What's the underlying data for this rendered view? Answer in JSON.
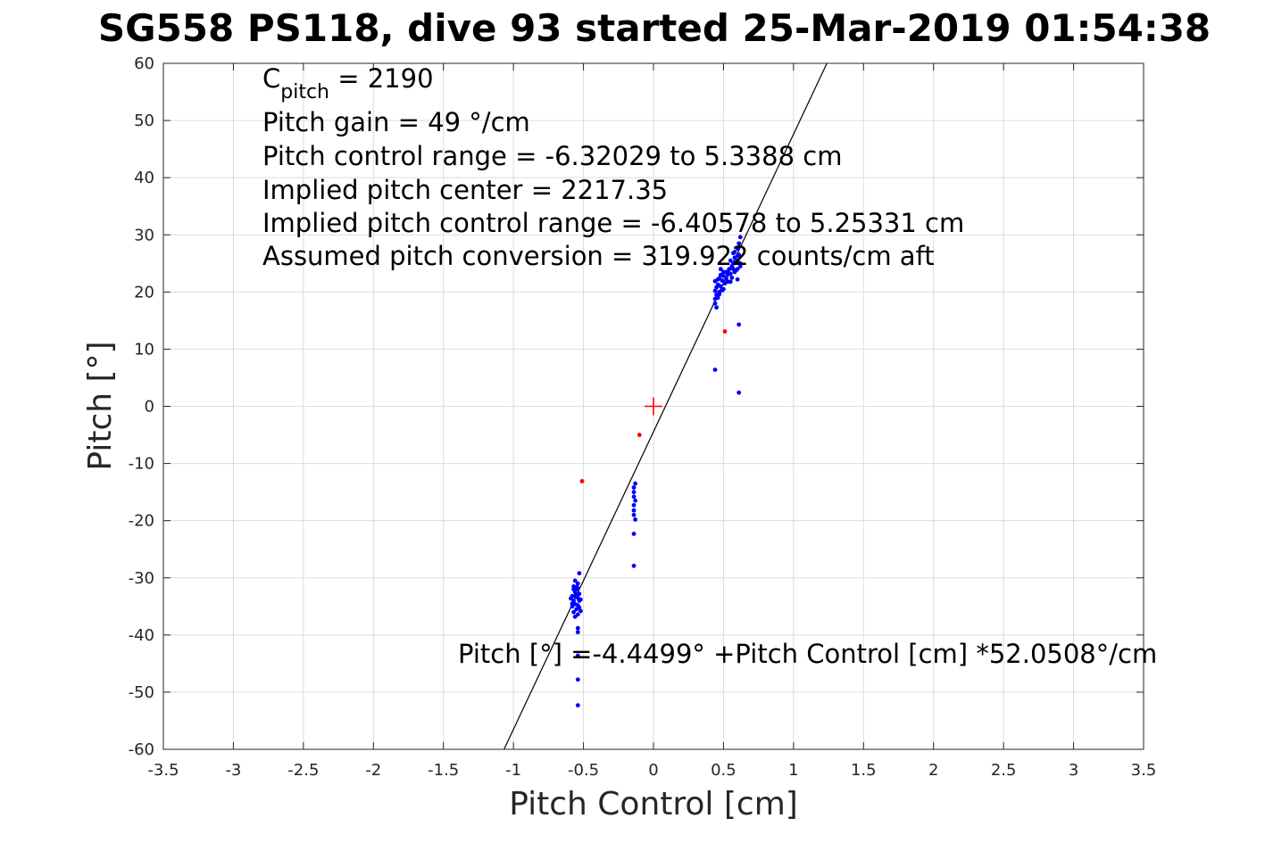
{
  "chart_data": {
    "type": "scatter",
    "title": "SG558 PS118, dive 93 started 25-Mar-2019 01:54:38",
    "xlabel": "Pitch Control [cm]",
    "ylabel": "Pitch [°]",
    "xlim": [
      -3.5,
      3.5
    ],
    "ylim": [
      -60,
      60
    ],
    "grid": true,
    "xticks": [
      -3.5,
      -3,
      -2.5,
      -2,
      -1.5,
      -1,
      -0.5,
      0,
      0.5,
      1,
      1.5,
      2,
      2.5,
      3,
      3.5
    ],
    "yticks": [
      -60,
      -50,
      -40,
      -30,
      -20,
      -10,
      0,
      10,
      20,
      30,
      40,
      50,
      60
    ],
    "xtick_labels": [
      "-3.5",
      "-3",
      "-2.5",
      "-2",
      "-1.5",
      "-1",
      "-0.5",
      "0",
      "0.5",
      "1",
      "1.5",
      "2",
      "2.5",
      "3",
      "3.5"
    ],
    "ytick_labels": [
      "-60",
      "-50",
      "-40",
      "-30",
      "-20",
      "-10",
      "0",
      "10",
      "20",
      "30",
      "40",
      "50",
      "60"
    ],
    "fit_line": {
      "intercept": -4.4499,
      "slope": 52.0508
    },
    "center_marker": {
      "x": 0,
      "y": 0,
      "color": "#ff0000"
    },
    "annotations": {
      "c_pitch_prefix": "C",
      "c_pitch_sub": "pitch",
      "c_pitch_value": " = 2190",
      "lines": [
        "Pitch gain = 49 °/cm",
        "Pitch control range = -6.32029 to 5.3388 cm",
        "Implied pitch center = 2217.35",
        "Implied pitch control range = -6.40578 to 5.25331 cm",
        "Assumed pitch conversion = 319.922 counts/cm aft"
      ],
      "fit_label": "Pitch [°] =-4.4499° +Pitch Control [cm] *52.0508°/cm"
    },
    "series": [
      {
        "color": "#0000ff",
        "points": [
          [
            0.44,
            18.0
          ],
          [
            0.44,
            18.8
          ],
          [
            0.45,
            19.5
          ],
          [
            0.44,
            20.2
          ],
          [
            0.45,
            20.8
          ],
          [
            0.46,
            21.3
          ],
          [
            0.44,
            21.9
          ],
          [
            0.47,
            22.4
          ],
          [
            0.46,
            19.0
          ],
          [
            0.47,
            20.0
          ],
          [
            0.48,
            21.0
          ],
          [
            0.49,
            22.0
          ],
          [
            0.48,
            23.0
          ],
          [
            0.5,
            20.5
          ],
          [
            0.51,
            21.5
          ],
          [
            0.52,
            22.3
          ],
          [
            0.53,
            23.0
          ],
          [
            0.5,
            22.8
          ],
          [
            0.52,
            23.5
          ],
          [
            0.54,
            24.0
          ],
          [
            0.55,
            23.2
          ],
          [
            0.56,
            24.5
          ],
          [
            0.57,
            25.0
          ],
          [
            0.55,
            25.5
          ],
          [
            0.58,
            26.0
          ],
          [
            0.57,
            24.0
          ],
          [
            0.59,
            25.2
          ],
          [
            0.6,
            26.3
          ],
          [
            0.58,
            27.0
          ],
          [
            0.6,
            27.6
          ],
          [
            0.61,
            28.5
          ],
          [
            0.62,
            29.6
          ],
          [
            0.6,
            25.5
          ],
          [
            0.61,
            26.5
          ],
          [
            0.62,
            25.0
          ],
          [
            0.59,
            23.8
          ],
          [
            0.53,
            21.8
          ],
          [
            0.5,
            23.5
          ],
          [
            0.46,
            22.2
          ],
          [
            0.45,
            17.3
          ],
          [
            0.48,
            24.0
          ],
          [
            0.56,
            22.5
          ],
          [
            0.6,
            22.2
          ],
          [
            0.58,
            23.5
          ],
          [
            0.62,
            24.5
          ],
          [
            0.57,
            26.8
          ],
          [
            0.6,
            24.0
          ],
          [
            0.55,
            21.8
          ],
          [
            0.47,
            19.6
          ],
          [
            0.49,
            20.3
          ],
          [
            0.61,
            14.3
          ],
          [
            0.44,
            6.4
          ],
          [
            0.61,
            2.4
          ],
          [
            -0.13,
            -13.5
          ],
          [
            -0.14,
            -14.2
          ],
          [
            -0.14,
            -15.0
          ],
          [
            -0.14,
            -15.8
          ],
          [
            -0.13,
            -16.5
          ],
          [
            -0.14,
            -17.3
          ],
          [
            -0.14,
            -18.2
          ],
          [
            -0.14,
            -19.0
          ],
          [
            -0.13,
            -19.8
          ],
          [
            -0.14,
            -22.3
          ],
          [
            -0.14,
            -27.9
          ],
          [
            -0.56,
            -30.5
          ],
          [
            -0.57,
            -31.5
          ],
          [
            -0.56,
            -32.5
          ],
          [
            -0.58,
            -33.2
          ],
          [
            -0.57,
            -34.0
          ],
          [
            -0.58,
            -35.0
          ],
          [
            -0.57,
            -36.0
          ],
          [
            -0.59,
            -33.6
          ],
          [
            -0.56,
            -34.6
          ],
          [
            -0.55,
            -32.0
          ],
          [
            -0.54,
            -31.0
          ],
          [
            -0.53,
            -29.2
          ],
          [
            -0.54,
            -33.5
          ],
          [
            -0.55,
            -35.5
          ],
          [
            -0.53,
            -34.0
          ],
          [
            -0.54,
            -36.4
          ],
          [
            -0.55,
            -31.6
          ],
          [
            -0.53,
            -32.8
          ],
          [
            -0.52,
            -33.8
          ],
          [
            -0.56,
            -36.8
          ],
          [
            -0.57,
            -32.0
          ],
          [
            -0.58,
            -34.5
          ],
          [
            -0.53,
            -35.2
          ],
          [
            -0.55,
            -33.0
          ],
          [
            -0.54,
            -34.8
          ],
          [
            -0.52,
            -35.8
          ],
          [
            -0.54,
            -31.8
          ],
          [
            -0.56,
            -33.2
          ],
          [
            -0.54,
            -38.8
          ],
          [
            -0.54,
            -39.5
          ],
          [
            -0.54,
            -43.6
          ],
          [
            -0.54,
            -47.8
          ],
          [
            -0.54,
            -52.3
          ]
        ]
      },
      {
        "color": "#ff0000",
        "points": [
          [
            0.51,
            13.1
          ],
          [
            -0.51,
            -13.1
          ],
          [
            -0.1,
            -5.0
          ]
        ]
      }
    ]
  }
}
